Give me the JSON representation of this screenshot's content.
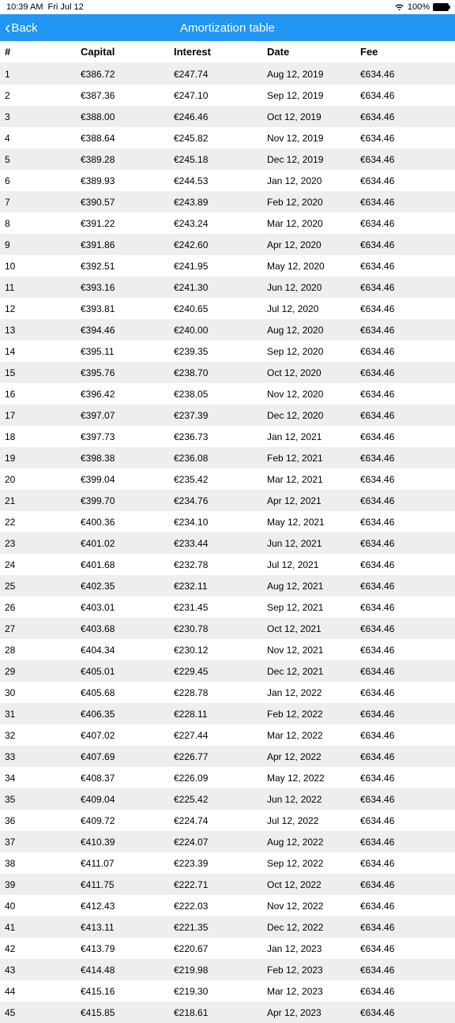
{
  "status_bar": {
    "time": "10:39 AM",
    "date": "Fri Jul 12",
    "battery_pct": "100%"
  },
  "nav": {
    "back_label": "Back",
    "title": "Amortization table"
  },
  "colors": {
    "nav_bg": "#2196f3",
    "row_alt_bg": "#eeeeee",
    "text": "#000000"
  },
  "table": {
    "columns": [
      "#",
      "Capital",
      "Interest",
      "Date",
      "Fee"
    ],
    "rows": [
      [
        "1",
        "€386.72",
        "€247.74",
        "Aug 12, 2019",
        "€634.46"
      ],
      [
        "2",
        "€387.36",
        "€247.10",
        "Sep 12, 2019",
        "€634.46"
      ],
      [
        "3",
        "€388.00",
        "€246.46",
        "Oct 12, 2019",
        "€634.46"
      ],
      [
        "4",
        "€388.64",
        "€245.82",
        "Nov 12, 2019",
        "€634.46"
      ],
      [
        "5",
        "€389.28",
        "€245.18",
        "Dec 12, 2019",
        "€634.46"
      ],
      [
        "6",
        "€389.93",
        "€244.53",
        "Jan 12, 2020",
        "€634.46"
      ],
      [
        "7",
        "€390.57",
        "€243.89",
        "Feb 12, 2020",
        "€634.46"
      ],
      [
        "8",
        "€391.22",
        "€243.24",
        "Mar 12, 2020",
        "€634.46"
      ],
      [
        "9",
        "€391.86",
        "€242.60",
        "Apr 12, 2020",
        "€634.46"
      ],
      [
        "10",
        "€392.51",
        "€241.95",
        "May 12, 2020",
        "€634.46"
      ],
      [
        "11",
        "€393.16",
        "€241.30",
        "Jun 12, 2020",
        "€634.46"
      ],
      [
        "12",
        "€393.81",
        "€240.65",
        "Jul 12, 2020",
        "€634.46"
      ],
      [
        "13",
        "€394.46",
        "€240.00",
        "Aug 12, 2020",
        "€634.46"
      ],
      [
        "14",
        "€395.11",
        "€239.35",
        "Sep 12, 2020",
        "€634.46"
      ],
      [
        "15",
        "€395.76",
        "€238.70",
        "Oct 12, 2020",
        "€634.46"
      ],
      [
        "16",
        "€396.42",
        "€238.05",
        "Nov 12, 2020",
        "€634.46"
      ],
      [
        "17",
        "€397.07",
        "€237.39",
        "Dec 12, 2020",
        "€634.46"
      ],
      [
        "18",
        "€397.73",
        "€236.73",
        "Jan 12, 2021",
        "€634.46"
      ],
      [
        "19",
        "€398.38",
        "€236.08",
        "Feb 12, 2021",
        "€634.46"
      ],
      [
        "20",
        "€399.04",
        "€235.42",
        "Mar 12, 2021",
        "€634.46"
      ],
      [
        "21",
        "€399.70",
        "€234.76",
        "Apr 12, 2021",
        "€634.46"
      ],
      [
        "22",
        "€400.36",
        "€234.10",
        "May 12, 2021",
        "€634.46"
      ],
      [
        "23",
        "€401.02",
        "€233.44",
        "Jun 12, 2021",
        "€634.46"
      ],
      [
        "24",
        "€401.68",
        "€232.78",
        "Jul 12, 2021",
        "€634.46"
      ],
      [
        "25",
        "€402.35",
        "€232.11",
        "Aug 12, 2021",
        "€634.46"
      ],
      [
        "26",
        "€403.01",
        "€231.45",
        "Sep 12, 2021",
        "€634.46"
      ],
      [
        "27",
        "€403.68",
        "€230.78",
        "Oct 12, 2021",
        "€634.46"
      ],
      [
        "28",
        "€404.34",
        "€230.12",
        "Nov 12, 2021",
        "€634.46"
      ],
      [
        "29",
        "€405.01",
        "€229.45",
        "Dec 12, 2021",
        "€634.46"
      ],
      [
        "30",
        "€405.68",
        "€228.78",
        "Jan 12, 2022",
        "€634.46"
      ],
      [
        "31",
        "€406.35",
        "€228.11",
        "Feb 12, 2022",
        "€634.46"
      ],
      [
        "32",
        "€407.02",
        "€227.44",
        "Mar 12, 2022",
        "€634.46"
      ],
      [
        "33",
        "€407.69",
        "€226.77",
        "Apr 12, 2022",
        "€634.46"
      ],
      [
        "34",
        "€408.37",
        "€226.09",
        "May 12, 2022",
        "€634.46"
      ],
      [
        "35",
        "€409.04",
        "€225.42",
        "Jun 12, 2022",
        "€634.46"
      ],
      [
        "36",
        "€409.72",
        "€224.74",
        "Jul 12, 2022",
        "€634.46"
      ],
      [
        "37",
        "€410.39",
        "€224.07",
        "Aug 12, 2022",
        "€634.46"
      ],
      [
        "38",
        "€411.07",
        "€223.39",
        "Sep 12, 2022",
        "€634.46"
      ],
      [
        "39",
        "€411.75",
        "€222.71",
        "Oct 12, 2022",
        "€634.46"
      ],
      [
        "40",
        "€412.43",
        "€222.03",
        "Nov 12, 2022",
        "€634.46"
      ],
      [
        "41",
        "€413.11",
        "€221.35",
        "Dec 12, 2022",
        "€634.46"
      ],
      [
        "42",
        "€413.79",
        "€220.67",
        "Jan 12, 2023",
        "€634.46"
      ],
      [
        "43",
        "€414.48",
        "€219.98",
        "Feb 12, 2023",
        "€634.46"
      ],
      [
        "44",
        "€415.16",
        "€219.30",
        "Mar 12, 2023",
        "€634.46"
      ],
      [
        "45",
        "€415.85",
        "€218.61",
        "Apr 12, 2023",
        "€634.46"
      ]
    ]
  }
}
